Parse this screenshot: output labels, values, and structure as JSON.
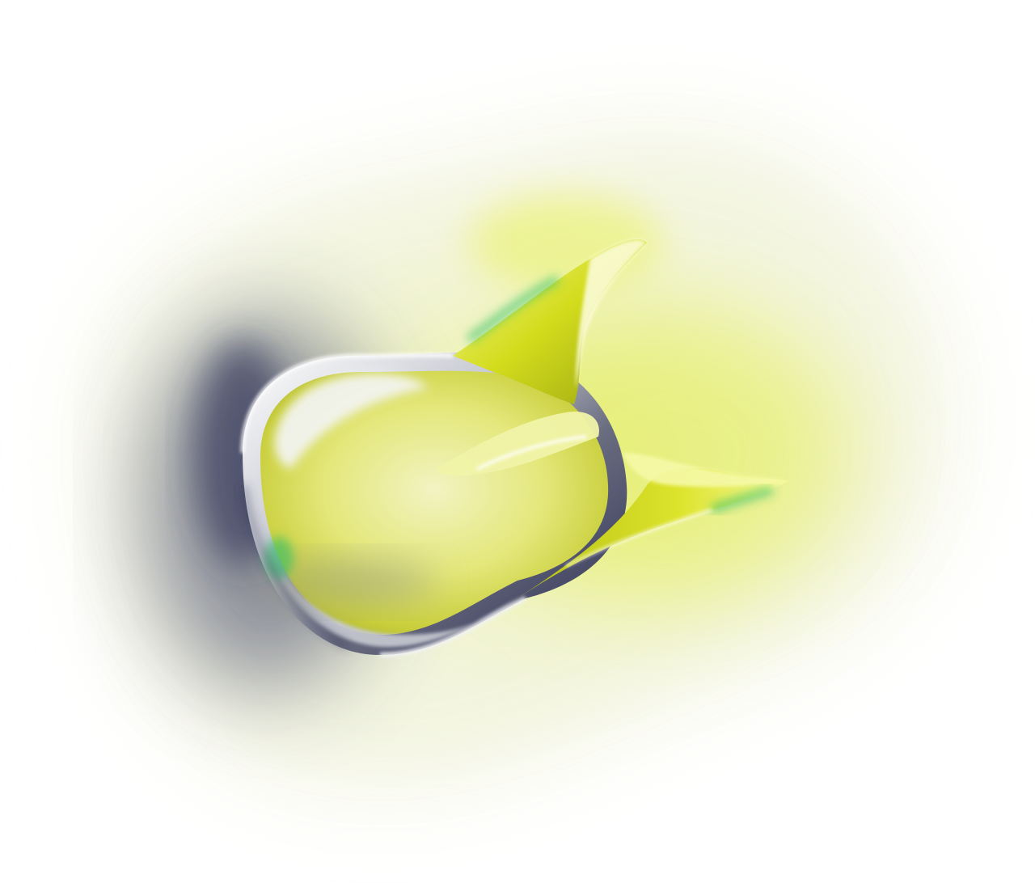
{
  "image": {
    "subject": "abstract-glossy-shape-icon",
    "colors": {
      "background": "#ffffff",
      "accent_yellow": "#d6e01a",
      "accent_lime": "#eef56a",
      "accent_green": "#31c36a",
      "shadow_navy": "#2b2d52",
      "chrome_silver": "#c8cad2"
    }
  }
}
